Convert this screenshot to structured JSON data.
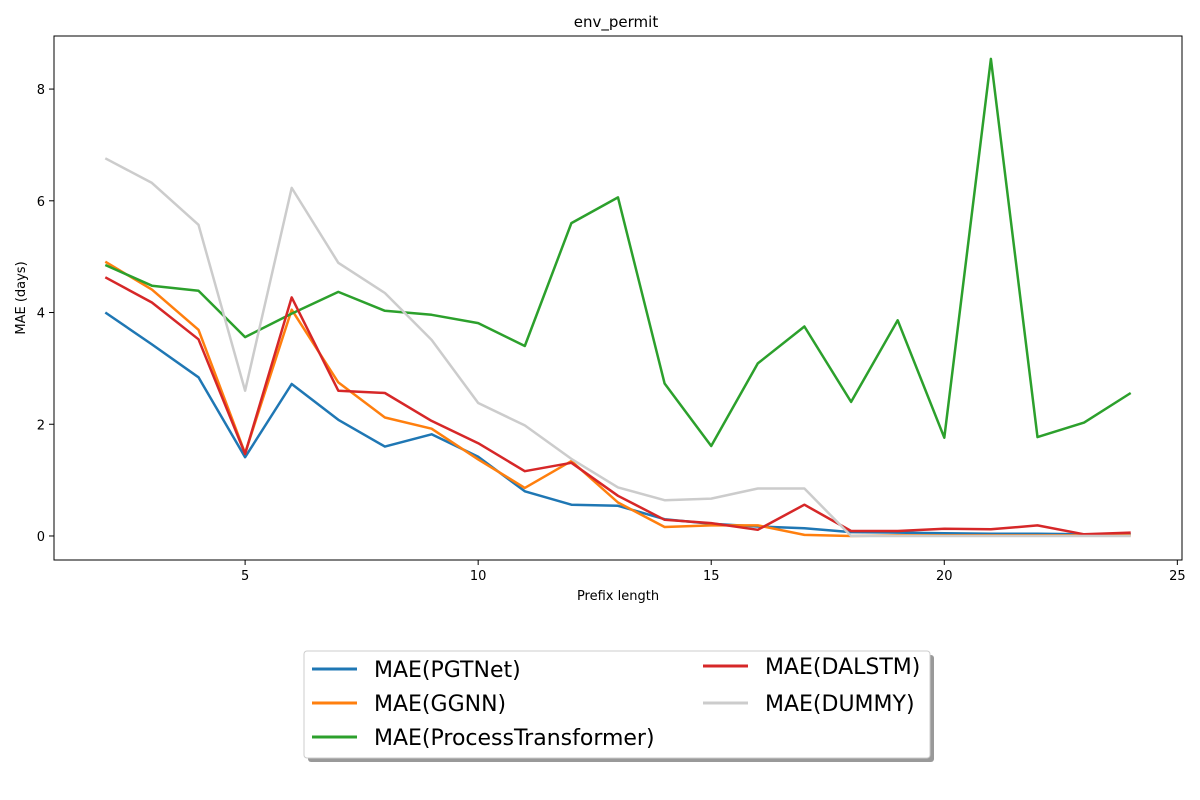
{
  "chart_data": {
    "type": "line",
    "title": "env_permit",
    "xlabel": "Prefix length",
    "ylabel": "MAE (days)",
    "xlim": [
      0.9,
      25.1
    ],
    "ylim": [
      -0.43,
      8.95
    ],
    "xticks": [
      5,
      10,
      15,
      20,
      25
    ],
    "yticks": [
      0,
      2,
      4,
      6,
      8
    ],
    "grid": false,
    "legend_position": "bottom-center",
    "x": [
      2,
      3,
      4,
      5,
      6,
      7,
      8,
      9,
      10,
      11,
      12,
      13,
      14,
      15,
      16,
      17,
      18,
      19,
      20,
      21,
      22,
      23,
      24
    ],
    "series": [
      {
        "name": "MAE(PGTNet)",
        "color": "#1f77b4",
        "values": [
          4.0,
          3.43,
          2.84,
          1.41,
          2.72,
          2.08,
          1.6,
          1.82,
          1.42,
          0.8,
          0.56,
          0.54,
          0.3,
          0.22,
          0.17,
          0.14,
          0.07,
          0.06,
          0.05,
          0.04,
          0.04,
          0.03,
          0.03
        ]
      },
      {
        "name": "MAE(GGNN)",
        "color": "#ff7f0e",
        "values": [
          4.91,
          4.41,
          3.69,
          1.48,
          4.05,
          2.75,
          2.12,
          1.92,
          1.37,
          0.86,
          1.34,
          0.6,
          0.16,
          0.19,
          0.19,
          0.02,
          0.0,
          0.01,
          0.01,
          0.01,
          0.01,
          0.01,
          0.01
        ]
      },
      {
        "name": "MAE(ProcessTransformer)",
        "color": "#2ca02c",
        "values": [
          4.85,
          4.48,
          4.39,
          3.56,
          3.98,
          4.37,
          4.03,
          3.96,
          3.81,
          3.4,
          5.6,
          6.06,
          2.73,
          1.61,
          3.09,
          3.75,
          2.4,
          3.86,
          1.76,
          8.54,
          1.77,
          2.03,
          2.56
        ]
      },
      {
        "name": "MAE(DALSTM)",
        "color": "#d62728",
        "values": [
          4.63,
          4.18,
          3.52,
          1.47,
          4.27,
          2.6,
          2.56,
          2.06,
          1.66,
          1.16,
          1.31,
          0.72,
          0.29,
          0.23,
          0.11,
          0.56,
          0.09,
          0.09,
          0.13,
          0.12,
          0.19,
          0.03,
          0.06
        ]
      },
      {
        "name": "MAE(DUMMY)",
        "color": "#cccccc",
        "values": [
          6.76,
          6.32,
          5.57,
          2.6,
          6.23,
          4.89,
          4.35,
          3.51,
          2.38,
          1.98,
          1.38,
          0.87,
          0.64,
          0.67,
          0.85,
          0.85,
          0.0,
          0.0,
          0.0,
          0.0,
          0.0,
          0.0,
          0.0
        ]
      }
    ]
  }
}
